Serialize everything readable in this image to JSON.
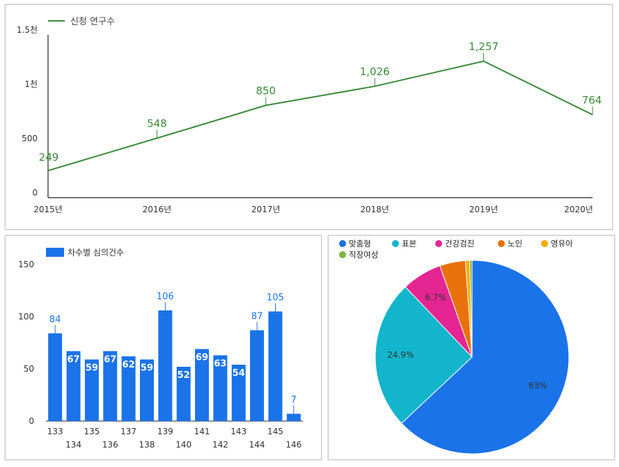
{
  "chart_data": [
    {
      "type": "line",
      "legend": "신청 연구수",
      "color": "#3a8a3a",
      "categories": [
        "2015년",
        "2016년",
        "2017년",
        "2018년",
        "2019년",
        "2020년"
      ],
      "values": [
        249,
        548,
        850,
        1026,
        1257,
        764
      ],
      "value_labels": [
        "249",
        "548",
        "850",
        "1,026",
        "1,257",
        "764"
      ],
      "yticks": [
        {
          "v": 0,
          "label": "0"
        },
        {
          "v": 500,
          "label": "500"
        },
        {
          "v": 1000,
          "label": "1천"
        },
        {
          "v": 1500,
          "label": "1.5천"
        }
      ],
      "ylim": [
        0,
        1500
      ],
      "grid": false,
      "legend_position": "top-left"
    },
    {
      "type": "bar",
      "legend": "차수별 심의건수",
      "color": "#1a73e8",
      "categories": [
        "133",
        "134",
        "135",
        "136",
        "137",
        "138",
        "139",
        "140",
        "141",
        "142",
        "143",
        "144",
        "145",
        "146"
      ],
      "values": [
        84,
        67,
        59,
        67,
        62,
        59,
        106,
        52,
        69,
        63,
        54,
        87,
        105,
        7
      ],
      "yticks": [
        {
          "v": 0,
          "label": "0"
        },
        {
          "v": 50,
          "label": "50"
        },
        {
          "v": 100,
          "label": "100"
        },
        {
          "v": 150,
          "label": "150"
        }
      ],
      "ylim": [
        0,
        150
      ],
      "grid": false,
      "legend_position": "top-left"
    },
    {
      "type": "pie",
      "legend_position": "top",
      "slices": [
        {
          "label": "맞춤형",
          "value": 63.0,
          "display": "63%",
          "color": "#1a73e8"
        },
        {
          "label": "표본",
          "value": 24.9,
          "display": "24.9%",
          "color": "#12b5cb"
        },
        {
          "label": "건강검진",
          "value": 6.7,
          "display": "6.7%",
          "color": "#e52592"
        },
        {
          "label": "노인",
          "value": 4.3,
          "display": "",
          "color": "#e8710a"
        },
        {
          "label": "영유아",
          "value": 0.7,
          "display": "",
          "color": "#f9ab00"
        },
        {
          "label": "직장여성",
          "value": 0.4,
          "display": "",
          "color": "#7cb342"
        }
      ]
    }
  ]
}
